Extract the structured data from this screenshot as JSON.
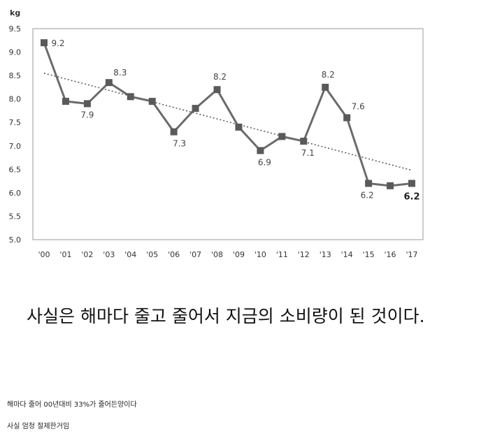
{
  "chart_data": {
    "type": "line",
    "ylabel": "kg",
    "categories": [
      "'00",
      "'01",
      "'02",
      "'03",
      "'04",
      "'05",
      "'06",
      "'07",
      "'08",
      "'09",
      "'10",
      "'11",
      "'12",
      "'13",
      "'14",
      "'15",
      "'16",
      "'17"
    ],
    "series": [
      {
        "values": [
          9.2,
          7.95,
          7.9,
          8.35,
          8.05,
          7.95,
          7.3,
          7.8,
          8.2,
          7.4,
          6.9,
          7.2,
          7.1,
          8.25,
          7.6,
          6.2,
          6.15,
          6.2
        ]
      }
    ],
    "data_labels": [
      {
        "index": 0,
        "text": "9.2"
      },
      {
        "index": 2,
        "text": "7.9"
      },
      {
        "index": 3,
        "text": "8.3"
      },
      {
        "index": 6,
        "text": "7.3"
      },
      {
        "index": 8,
        "text": "8.2"
      },
      {
        "index": 10,
        "text": "6.9"
      },
      {
        "index": 12,
        "text": "7.1"
      },
      {
        "index": 13,
        "text": "8.2"
      },
      {
        "index": 14,
        "text": "7.6"
      },
      {
        "index": 15,
        "text": "6.2"
      },
      {
        "index": 17,
        "text": "6.2"
      }
    ],
    "trendline": {
      "style": "dotted",
      "start": 8.55,
      "end": 6.48
    },
    "ylim": [
      5.0,
      9.5
    ],
    "yticks": [
      "5.0",
      "5.5",
      "6.0",
      "6.5",
      "7.0",
      "7.5",
      "8.0",
      "8.5",
      "9.0",
      "9.5"
    ],
    "grid": false,
    "colors": {
      "line": "#6b6b6b",
      "marker": "#5a5a5a",
      "trend": "#555555",
      "frame": "#9a9a9a"
    }
  },
  "text": {
    "headline": "사실은 해마다 줄고 줄어서 지금의 소비량이 된 것이다.",
    "note1": "해마다 줄어 00년대비 33%가 줄어든양이다",
    "note2": "사실 엄청 절제한거임"
  }
}
